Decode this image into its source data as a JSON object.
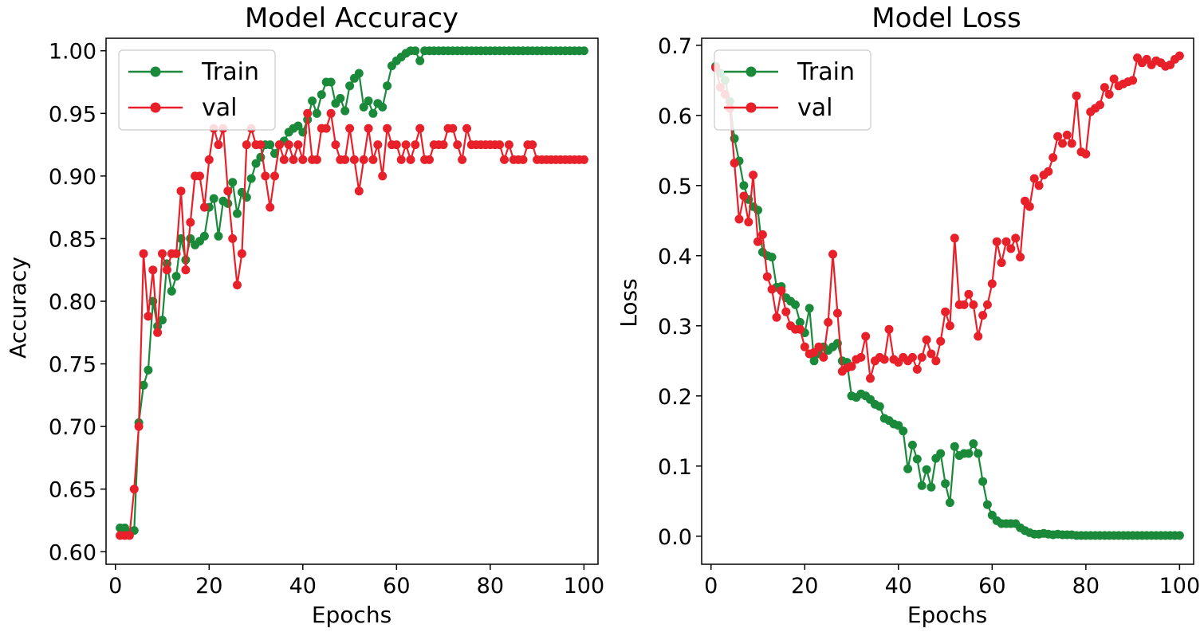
{
  "colors": {
    "train": "#1a8a3a",
    "val": "#e8202a"
  },
  "chart_data": [
    {
      "type": "line",
      "title": "Model Accuracy",
      "xlabel": "Epochs",
      "ylabel": "Accuracy",
      "xlim": [
        -2,
        103
      ],
      "ylim": [
        0.59,
        1.01
      ],
      "xticks": [
        0,
        20,
        40,
        60,
        80,
        100
      ],
      "xtick_labels": [
        "0",
        "20",
        "40",
        "60",
        "80",
        "100"
      ],
      "yticks": [
        0.6,
        0.65,
        0.7,
        0.75,
        0.8,
        0.85,
        0.9,
        0.95,
        1.0
      ],
      "ytick_labels": [
        "0.60",
        "0.65",
        "0.70",
        "0.75",
        "0.80",
        "0.85",
        "0.90",
        "0.95",
        "1.00"
      ],
      "legend": {
        "position": "top-left",
        "labels": [
          "Train",
          "val"
        ]
      },
      "x": [
        1,
        2,
        3,
        4,
        5,
        6,
        7,
        8,
        9,
        10,
        11,
        12,
        13,
        14,
        15,
        16,
        17,
        18,
        19,
        20,
        21,
        22,
        23,
        24,
        25,
        26,
        27,
        28,
        29,
        30,
        31,
        32,
        33,
        34,
        35,
        36,
        37,
        38,
        39,
        40,
        41,
        42,
        43,
        44,
        45,
        46,
        47,
        48,
        49,
        50,
        51,
        52,
        53,
        54,
        55,
        56,
        57,
        58,
        59,
        60,
        61,
        62,
        63,
        64,
        65,
        66,
        67,
        68,
        69,
        70,
        71,
        72,
        73,
        74,
        75,
        76,
        77,
        78,
        79,
        80,
        81,
        82,
        83,
        84,
        85,
        86,
        87,
        88,
        89,
        90,
        91,
        92,
        93,
        94,
        95,
        96,
        97,
        98,
        99,
        100
      ],
      "series": [
        {
          "name": "Train",
          "color_key": "train",
          "values": [
            0.619,
            0.619,
            0.615,
            0.617,
            0.703,
            0.733,
            0.745,
            0.8,
            0.78,
            0.785,
            0.83,
            0.808,
            0.82,
            0.85,
            0.833,
            0.85,
            0.845,
            0.848,
            0.852,
            0.875,
            0.882,
            0.852,
            0.88,
            0.878,
            0.895,
            0.87,
            0.887,
            0.883,
            0.898,
            0.91,
            0.915,
            0.925,
            0.925,
            0.918,
            0.925,
            0.928,
            0.935,
            0.938,
            0.94,
            0.935,
            0.945,
            0.96,
            0.95,
            0.965,
            0.975,
            0.975,
            0.958,
            0.962,
            0.952,
            0.972,
            0.978,
            0.982,
            0.955,
            0.96,
            0.95,
            0.958,
            0.955,
            0.972,
            0.988,
            0.992,
            0.995,
            0.998,
            1.0,
            1.0,
            0.992,
            1.0,
            1.0,
            1.0,
            1.0,
            1.0,
            1.0,
            1.0,
            1.0,
            1.0,
            1.0,
            1.0,
            1.0,
            1.0,
            1.0,
            1.0,
            1.0,
            1.0,
            1.0,
            1.0,
            1.0,
            1.0,
            1.0,
            1.0,
            1.0,
            1.0,
            1.0,
            1.0,
            1.0,
            1.0,
            1.0,
            1.0,
            1.0,
            1.0,
            1.0,
            1.0
          ]
        },
        {
          "name": "val",
          "color_key": "val",
          "values": [
            0.613,
            0.613,
            0.613,
            0.65,
            0.7,
            0.838,
            0.788,
            0.825,
            0.775,
            0.838,
            0.825,
            0.838,
            0.838,
            0.888,
            0.825,
            0.863,
            0.9,
            0.9,
            0.875,
            0.913,
            0.938,
            0.925,
            0.938,
            0.888,
            0.85,
            0.813,
            0.838,
            0.925,
            0.938,
            0.925,
            0.925,
            0.9,
            0.875,
            0.9,
            0.925,
            0.913,
            0.925,
            0.913,
            0.925,
            0.913,
            0.95,
            0.913,
            0.913,
            0.938,
            0.938,
            0.95,
            0.925,
            0.913,
            0.913,
            0.938,
            0.913,
            0.888,
            0.913,
            0.938,
            0.913,
            0.925,
            0.9,
            0.938,
            0.925,
            0.925,
            0.913,
            0.925,
            0.913,
            0.925,
            0.938,
            0.913,
            0.913,
            0.925,
            0.925,
            0.925,
            0.938,
            0.938,
            0.925,
            0.913,
            0.938,
            0.925,
            0.925,
            0.925,
            0.925,
            0.925,
            0.925,
            0.925,
            0.913,
            0.925,
            0.913,
            0.913,
            0.913,
            0.925,
            0.925,
            0.913,
            0.913,
            0.913,
            0.913,
            0.913,
            0.913,
            0.913,
            0.913,
            0.913,
            0.913,
            0.913
          ]
        }
      ]
    },
    {
      "type": "line",
      "title": "Model Loss",
      "xlabel": "Epochs",
      "ylabel": "Loss",
      "xlim": [
        -2,
        103
      ],
      "ylim": [
        -0.04,
        0.71
      ],
      "xticks": [
        0,
        20,
        40,
        60,
        80,
        100
      ],
      "xtick_labels": [
        "0",
        "20",
        "40",
        "60",
        "80",
        "100"
      ],
      "yticks": [
        0.0,
        0.1,
        0.2,
        0.3,
        0.4,
        0.5,
        0.6,
        0.7
      ],
      "ytick_labels": [
        "0.0",
        "0.1",
        "0.2",
        "0.3",
        "0.4",
        "0.5",
        "0.6",
        "0.7"
      ],
      "legend": {
        "position": "top-left",
        "labels": [
          "Train",
          "val"
        ]
      },
      "x": [
        1,
        2,
        3,
        4,
        5,
        6,
        7,
        8,
        9,
        10,
        11,
        12,
        13,
        14,
        15,
        16,
        17,
        18,
        19,
        20,
        21,
        22,
        23,
        24,
        25,
        26,
        27,
        28,
        29,
        30,
        31,
        32,
        33,
        34,
        35,
        36,
        37,
        38,
        39,
        40,
        41,
        42,
        43,
        44,
        45,
        46,
        47,
        48,
        49,
        50,
        51,
        52,
        53,
        54,
        55,
        56,
        57,
        58,
        59,
        60,
        61,
        62,
        63,
        64,
        65,
        66,
        67,
        68,
        69,
        70,
        71,
        72,
        73,
        74,
        75,
        76,
        77,
        78,
        79,
        80,
        81,
        82,
        83,
        84,
        85,
        86,
        87,
        88,
        89,
        90,
        91,
        92,
        93,
        94,
        95,
        96,
        97,
        98,
        99,
        100
      ],
      "series": [
        {
          "name": "Train",
          "color_key": "train",
          "values": [
            0.67,
            0.66,
            0.65,
            0.62,
            0.567,
            0.535,
            0.5,
            0.48,
            0.47,
            0.465,
            0.405,
            0.4,
            0.398,
            0.355,
            0.356,
            0.34,
            0.335,
            0.33,
            0.305,
            0.29,
            0.325,
            0.25,
            0.26,
            0.27,
            0.265,
            0.27,
            0.275,
            0.25,
            0.248,
            0.2,
            0.198,
            0.203,
            0.2,
            0.195,
            0.188,
            0.185,
            0.168,
            0.165,
            0.16,
            0.158,
            0.15,
            0.096,
            0.13,
            0.11,
            0.072,
            0.095,
            0.07,
            0.111,
            0.118,
            0.075,
            0.048,
            0.128,
            0.115,
            0.118,
            0.118,
            0.132,
            0.118,
            0.078,
            0.045,
            0.03,
            0.022,
            0.018,
            0.018,
            0.018,
            0.018,
            0.012,
            0.008,
            0.005,
            0.003,
            0.003,
            0.004,
            0.003,
            0.002,
            0.003,
            0.002,
            0.002,
            0.002,
            0.001,
            0.001,
            0.001,
            0.001,
            0.001,
            0.001,
            0.001,
            0.001,
            0.001,
            0.001,
            0.001,
            0.001,
            0.001,
            0.001,
            0.001,
            0.001,
            0.001,
            0.001,
            0.001,
            0.001,
            0.001,
            0.001,
            0.001
          ]
        },
        {
          "name": "val",
          "color_key": "val",
          "values": [
            0.668,
            0.64,
            0.63,
            0.61,
            0.532,
            0.452,
            0.485,
            0.448,
            0.515,
            0.42,
            0.43,
            0.37,
            0.352,
            0.312,
            0.35,
            0.32,
            0.3,
            0.295,
            0.295,
            0.27,
            0.26,
            0.262,
            0.27,
            0.255,
            0.305,
            0.402,
            0.318,
            0.235,
            0.24,
            0.242,
            0.252,
            0.255,
            0.285,
            0.225,
            0.25,
            0.255,
            0.252,
            0.295,
            0.252,
            0.248,
            0.255,
            0.25,
            0.255,
            0.238,
            0.255,
            0.28,
            0.26,
            0.25,
            0.278,
            0.32,
            0.3,
            0.425,
            0.33,
            0.33,
            0.345,
            0.33,
            0.285,
            0.315,
            0.33,
            0.36,
            0.42,
            0.39,
            0.42,
            0.41,
            0.425,
            0.398,
            0.478,
            0.47,
            0.51,
            0.5,
            0.515,
            0.52,
            0.54,
            0.57,
            0.56,
            0.572,
            0.56,
            0.628,
            0.548,
            0.545,
            0.605,
            0.61,
            0.615,
            0.64,
            0.63,
            0.652,
            0.642,
            0.645,
            0.648,
            0.65,
            0.682,
            0.675,
            0.68,
            0.672,
            0.678,
            0.675,
            0.67,
            0.672,
            0.68,
            0.685
          ]
        }
      ]
    }
  ]
}
